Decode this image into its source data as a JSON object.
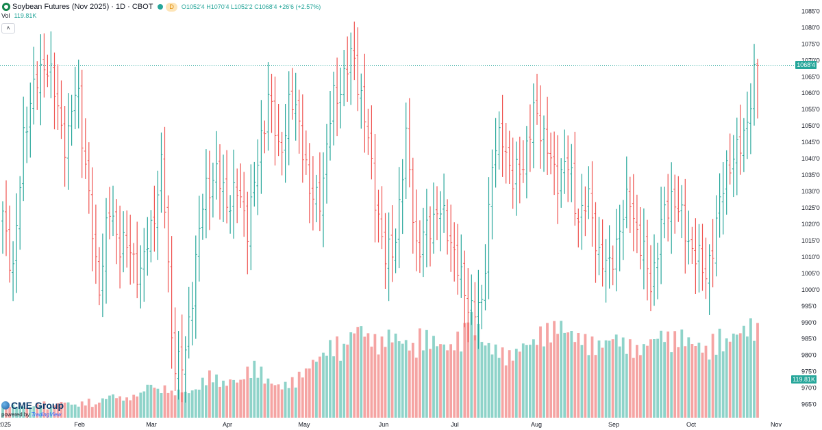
{
  "header": {
    "symbol_title": "Soybean Futures (Nov 2025) · 1D · CBOT",
    "interval_badge": "D",
    "open_label": "O",
    "open_value": "1052'4",
    "high_label": "H",
    "high_value": "1070'4",
    "low_label": "L",
    "low_value": "1052'2",
    "close_label": "C",
    "close_value": "1068'4",
    "change": "+26'6 (+2.57%)",
    "volume_label": "Vol",
    "volume_value": "119.81K",
    "collapse_icon": "chevron-up-icon"
  },
  "branding": {
    "logo": "CME Group",
    "powered": "powered by",
    "tv": "TradingView"
  },
  "colors": {
    "up": "#26a69a",
    "down": "#ef5350",
    "volume_up": "#8ed3c9",
    "volume_down": "#f5a4a3",
    "grid_text": "#131722"
  },
  "chart_data": {
    "type": "ohlc",
    "title": "Soybean Futures (Nov 2025) · 1D · CBOT",
    "x_labels": [
      "2025",
      "Feb",
      "Mar",
      "Apr",
      "May",
      "Jun",
      "Jul",
      "Aug",
      "Sep",
      "Oct",
      "Nov"
    ],
    "y_ticks": [
      "965'0",
      "970'0",
      "975'0",
      "980'0",
      "985'0",
      "990'0",
      "995'0",
      "1000'0",
      "1005'0",
      "1010'0",
      "1015'0",
      "1020'0",
      "1025'0",
      "1030'0",
      "1035'0",
      "1040'0",
      "1045'0",
      "1050'0",
      "1055'0",
      "1060'0",
      "1065'0",
      "1070'0",
      "1075'0",
      "1080'0",
      "1085'0"
    ],
    "y_tick_values": [
      965,
      970,
      975,
      980,
      985,
      990,
      995,
      1000,
      1005,
      1010,
      1015,
      1020,
      1025,
      1030,
      1035,
      1040,
      1045,
      1050,
      1055,
      1060,
      1065,
      1070,
      1075,
      1080,
      1085
    ],
    "ylim": [
      962,
      1088
    ],
    "last_price_label": "1068'4",
    "last_price": 1068.5,
    "last_volume_label": "119.81K",
    "key_points": [
      {
        "label": "Jan 2",
        "price": 1024
      },
      {
        "label": "Jan 8",
        "price": 1004
      },
      {
        "label": "Jan 17",
        "price": 1050
      },
      {
        "label": "Jan 24",
        "price": 1061
      },
      {
        "label": "Jan 31",
        "price": 1071
      },
      {
        "label": "Feb 10",
        "price": 1058
      },
      {
        "label": "Feb 14",
        "price": 1043
      },
      {
        "label": "Feb 20",
        "price": 1064
      },
      {
        "label": "Feb 28",
        "price": 1030
      },
      {
        "label": "Mar 4",
        "price": 1000
      },
      {
        "label": "Mar 10",
        "price": 1024
      },
      {
        "label": "Mar 14",
        "price": 1015
      },
      {
        "label": "Mar 21",
        "price": 1011
      },
      {
        "label": "Mar 27",
        "price": 1005
      },
      {
        "label": "Apr 3",
        "price": 1019
      },
      {
        "label": "Apr 7",
        "price": 1039
      },
      {
        "label": "Apr 10",
        "price": 980
      },
      {
        "label": "Apr 14",
        "price": 975
      },
      {
        "label": "Apr 18",
        "price": 1005
      },
      {
        "label": "Apr 24",
        "price": 1030
      },
      {
        "label": "May 2",
        "price": 1036
      },
      {
        "label": "May 9",
        "price": 1027
      },
      {
        "label": "May 16",
        "price": 1030
      },
      {
        "label": "May 21",
        "price": 1020
      },
      {
        "label": "May 28",
        "price": 1038
      },
      {
        "label": "Jun 3",
        "price": 1061
      },
      {
        "label": "Jun 9",
        "price": 1040
      },
      {
        "label": "Jun 13",
        "price": 1058
      },
      {
        "label": "Jun 19",
        "price": 1050
      },
      {
        "label": "Jun 25",
        "price": 1026
      },
      {
        "label": "Jul 1",
        "price": 1030
      },
      {
        "label": "Jul 9",
        "price": 1057
      },
      {
        "label": "Jul 14",
        "price": 1064
      },
      {
        "label": "Jul 18",
        "price": 1072
      },
      {
        "label": "Jul 23",
        "price": 1053
      },
      {
        "label": "Jul 28",
        "price": 1030
      },
      {
        "label": "Aug 1",
        "price": 1008
      },
      {
        "label": "Aug 5",
        "price": 1017
      },
      {
        "label": "Aug 8",
        "price": 1047
      },
      {
        "label": "Aug 13",
        "price": 1009
      },
      {
        "label": "Aug 19",
        "price": 1020
      },
      {
        "label": "Aug 22",
        "price": 1024
      },
      {
        "label": "Aug 27",
        "price": 1018
      },
      {
        "label": "Sep 2",
        "price": 1003
      },
      {
        "label": "Sep 5",
        "price": 995
      },
      {
        "label": "Sep 9",
        "price": 992
      },
      {
        "label": "Sep 12",
        "price": 1038
      },
      {
        "label": "Sep 16",
        "price": 1048
      },
      {
        "label": "Sep 19",
        "price": 1032
      },
      {
        "label": "Sep 24",
        "price": 1040
      },
      {
        "label": "Sep 29",
        "price": 1054
      },
      {
        "label": "Oct 2",
        "price": 1047
      },
      {
        "label": "Oct 6",
        "price": 1032
      },
      {
        "label": "Oct 9",
        "price": 1041
      },
      {
        "label": "Oct 14",
        "price": 1022
      },
      {
        "label": "Oct 17",
        "price": 1028
      },
      {
        "label": "Oct 22",
        "price": 1012
      },
      {
        "label": "Oct 27",
        "price": 1005
      },
      {
        "label": "Oct 30",
        "price": 1019
      },
      {
        "label": "Nov 4",
        "price": 1028
      },
      {
        "label": "Nov 7",
        "price": 1013
      },
      {
        "label": "Nov 12",
        "price": 1002
      },
      {
        "label": "Nov 17",
        "price": 1020
      },
      {
        "label": "Nov 20",
        "price": 1030
      },
      {
        "label": "Nov 24",
        "price": 1019
      },
      {
        "label": "Dec 1",
        "price": 1012
      },
      {
        "label": "Dec 4",
        "price": 1004
      },
      {
        "label": "Dec 8",
        "price": 1016
      },
      {
        "label": "Dec 11",
        "price": 1038
      },
      {
        "label": "Dec 15",
        "price": 1040
      },
      {
        "label": "Dec 17",
        "price": 1052
      },
      {
        "label": "Dec 18",
        "price": 1068.5
      }
    ],
    "volume_max": 90,
    "volume": [
      12,
      10,
      9,
      9,
      8,
      10,
      11,
      12,
      8,
      11,
      13,
      12,
      11,
      10,
      12,
      14,
      10,
      13,
      15,
      18,
      17,
      16,
      15,
      17,
      19,
      22,
      26,
      25,
      22,
      24,
      20,
      21,
      22,
      20,
      22,
      24,
      30,
      35,
      32,
      28,
      27,
      30,
      29,
      34,
      38,
      42,
      38,
      30,
      28,
      26,
      24,
      27,
      30,
      34,
      37,
      42,
      45,
      50,
      54,
      58,
      60,
      55,
      65,
      70,
      72,
      68,
      64,
      62,
      60,
      66,
      65,
      62,
      60,
      58,
      56,
      66,
      65,
      62,
      60,
      58,
      56,
      60,
      64,
      70,
      90,
      72,
      62,
      58,
      54,
      55,
      52,
      50,
      52,
      56,
      58,
      60,
      64,
      68,
      70,
      72,
      74,
      70,
      68,
      64,
      66,
      62,
      60,
      58,
      60,
      62,
      64,
      62,
      60,
      58,
      54,
      56,
      60,
      62,
      66,
      68,
      64,
      64,
      66,
      62,
      60,
      58,
      56,
      54,
      62,
      66,
      60,
      64,
      66,
      70,
      72,
      74,
      70
    ]
  }
}
